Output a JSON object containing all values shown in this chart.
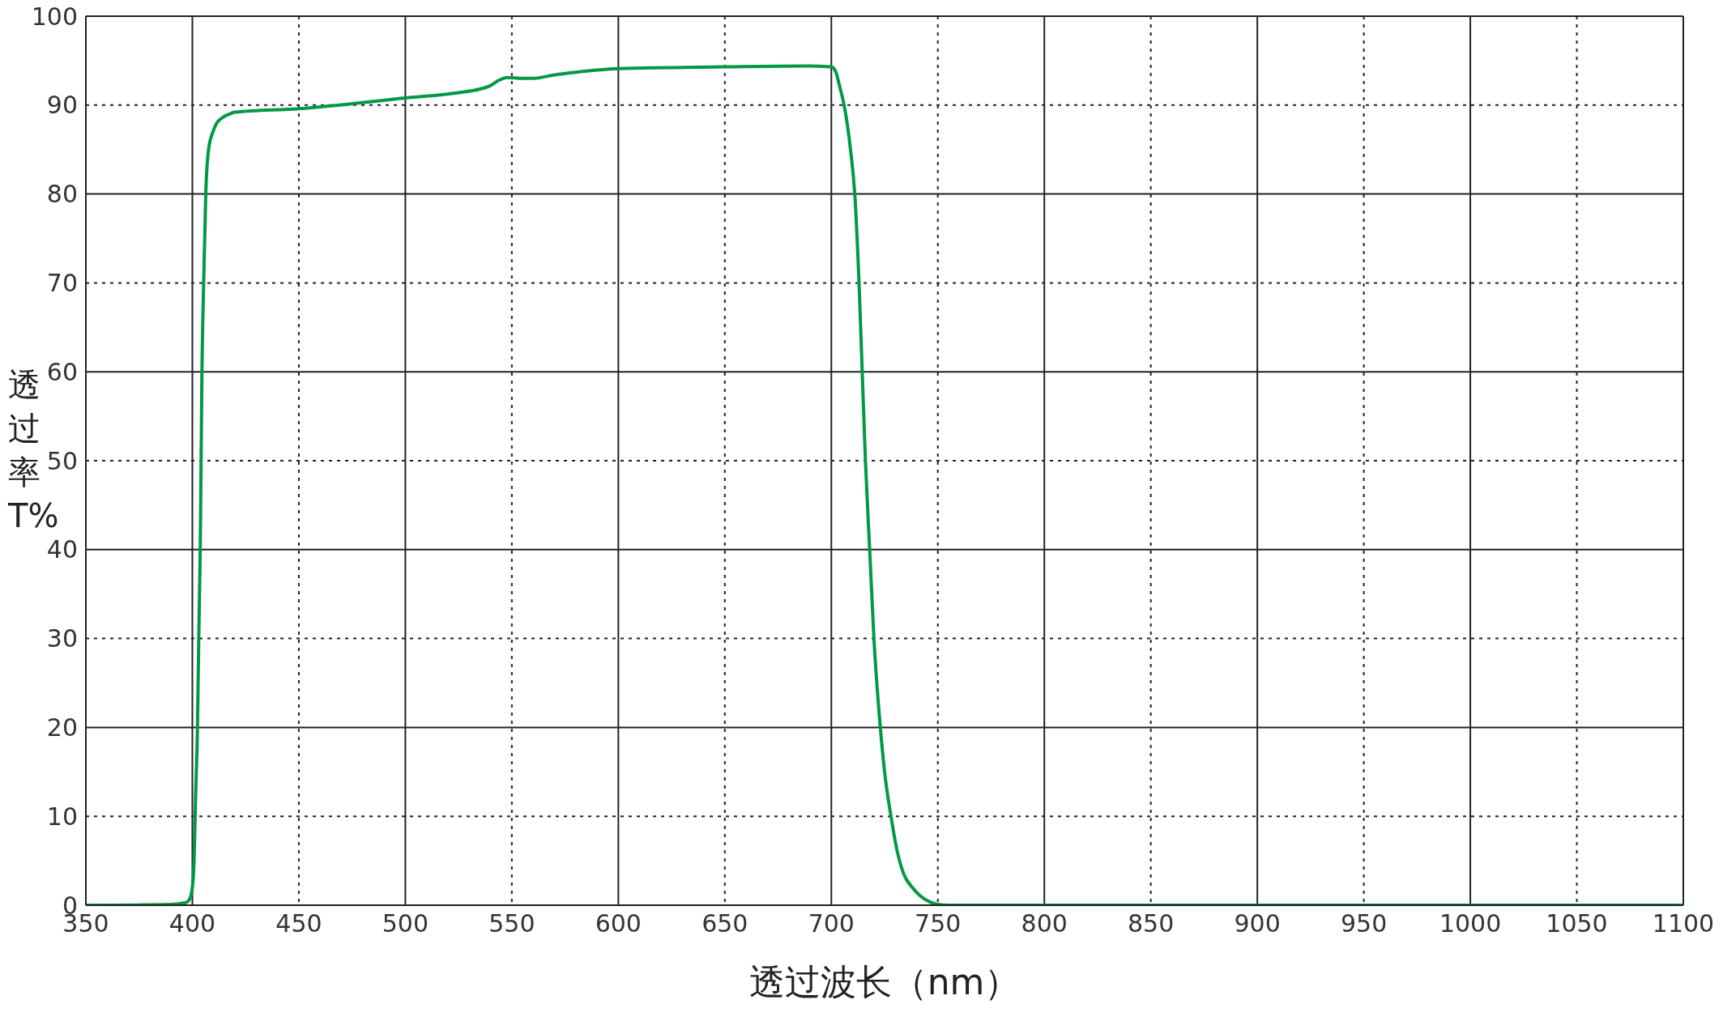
{
  "chart_data": {
    "type": "line",
    "xlabel": "透过波长（nm）",
    "ylabel": "透过率T%",
    "xlim": [
      350,
      1100
    ],
    "xticks": [
      350,
      400,
      450,
      500,
      550,
      600,
      650,
      700,
      750,
      800,
      850,
      900,
      950,
      1000,
      1050,
      1100
    ],
    "ylim": [
      0,
      100
    ],
    "yticks": [
      0,
      10,
      20,
      30,
      40,
      50,
      60,
      70,
      80,
      90,
      100
    ],
    "grid": true,
    "marker": "none",
    "line_style": "solid",
    "series": [
      {
        "color": "#009944",
        "x": [
          350,
          390,
          397,
          398.5,
          400,
          400.8,
          401.5,
          402.4,
          403,
          403.7,
          404.5,
          405.5,
          406.3,
          407.6,
          409.7,
          411.5,
          413.6,
          417.5,
          420,
          450,
          500,
          525,
          535,
          540,
          544,
          548,
          555,
          560,
          570,
          580,
          600,
          650,
          690,
          700,
          702,
          704,
          706,
          709,
          711,
          713,
          714.5,
          716,
          718,
          720,
          723,
          725,
          728,
          731,
          734,
          738,
          742,
          746,
          750,
          755,
          800,
          900,
          1000,
          1100
        ],
        "values": [
          0,
          0.1,
          0.3,
          0.6,
          2,
          5,
          12,
          20,
          30,
          40,
          60,
          72,
          80,
          85,
          87,
          88,
          88.5,
          89,
          89.2,
          89.6,
          90.8,
          91.4,
          91.8,
          92.2,
          92.8,
          93.1,
          93,
          93,
          93.4,
          93.7,
          94.1,
          94.3,
          94.4,
          94.3,
          93.8,
          92,
          90,
          85,
          80,
          70,
          60,
          50,
          40,
          30,
          20,
          15,
          10,
          6,
          3.5,
          2,
          1,
          0.4,
          0.1,
          0,
          0,
          0,
          0,
          0
        ]
      }
    ]
  }
}
